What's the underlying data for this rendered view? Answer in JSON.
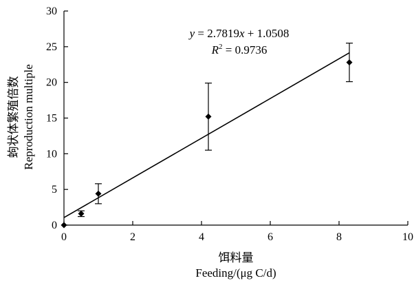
{
  "chart_data": {
    "type": "scatter",
    "title": "",
    "xlabel_cn": "饵料量",
    "xlabel_en": "Feeding/(μg C/d)",
    "ylabel_cn": "蚼状体繁殖倍数",
    "ylabel_en": "Reproduction multiple",
    "xlim": [
      0,
      10
    ],
    "ylim": [
      0,
      30
    ],
    "xticks": [
      0,
      2,
      4,
      6,
      8,
      10
    ],
    "yticks": [
      0,
      5,
      10,
      15,
      20,
      25,
      30
    ],
    "grid": false,
    "points": [
      {
        "x": 0,
        "y": 0,
        "err": 0
      },
      {
        "x": 0.5,
        "y": 1.6,
        "err": 0.4
      },
      {
        "x": 1.0,
        "y": 4.4,
        "err": 1.4
      },
      {
        "x": 4.2,
        "y": 15.2,
        "err": 4.7
      },
      {
        "x": 8.3,
        "y": 22.8,
        "err": 2.7
      }
    ],
    "fit": {
      "slope": 2.7819,
      "intercept": 1.0508,
      "x_range": [
        0,
        8.3
      ]
    },
    "equation": {
      "y_prefix": "y",
      "rhs": " = 2.7819",
      "x_var": "x",
      "rhs_tail": " + 1.0508"
    },
    "r2": {
      "label": "R",
      "sup": "2",
      "value": " = 0.9736"
    }
  }
}
